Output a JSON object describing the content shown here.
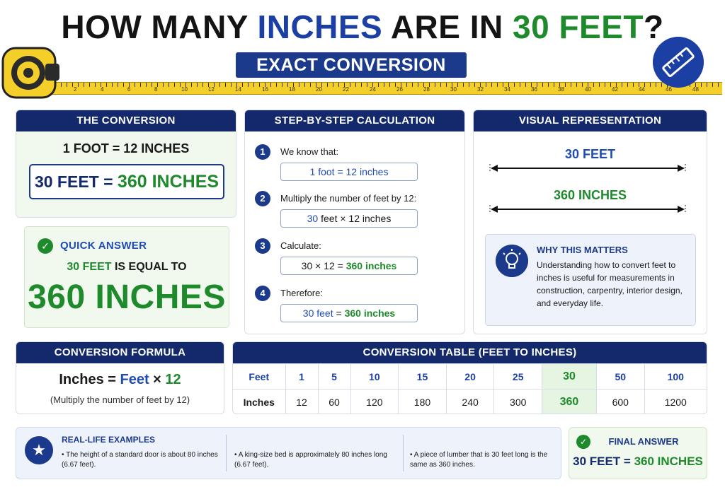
{
  "header": {
    "title_part1": "HOW MANY ",
    "title_part2": "INCHES",
    "title_part3": " ARE IN ",
    "title_part4": "30 FEET",
    "title_part5": "?",
    "subtitle": "EXACT CONVERSION"
  },
  "tape": {
    "numbers": [
      "2",
      "4",
      "6",
      "8",
      "10",
      "12",
      "14",
      "16",
      "18",
      "20",
      "22",
      "24",
      "26",
      "28",
      "30",
      "32",
      "34",
      "36",
      "38",
      "40",
      "42",
      "44",
      "46",
      "48"
    ]
  },
  "conversion": {
    "heading": "THE CONVERSION",
    "line1": "1 FOOT = 12 INCHES",
    "result_left": "30 FEET = ",
    "result_right": "360 INCHES"
  },
  "quick_answer": {
    "title": "QUICK ANSWER",
    "line_green": "30 FEET",
    "line_rest": " IS EQUAL TO",
    "big": "360 INCHES"
  },
  "steps": {
    "heading": "STEP-BY-STEP CALCULATION",
    "items": [
      {
        "num": "1",
        "label": "We know that:",
        "box_a": "1 foot = 12 inches",
        "box_b": "",
        "box_c": ""
      },
      {
        "num": "2",
        "label": "Multiply the number of feet by 12:",
        "box_a": "30",
        "box_b": " feet × 12 inches",
        "box_c": ""
      },
      {
        "num": "3",
        "label": "Calculate:",
        "box_a": "",
        "box_b": "30 × 12 = ",
        "box_c": "360 inches"
      },
      {
        "num": "4",
        "label": "Therefore:",
        "box_a": "30 feet",
        "box_b": " = ",
        "box_c": "360 inches"
      }
    ]
  },
  "visual": {
    "heading": "VISUAL REPRESENTATION",
    "label_feet": "30 FEET",
    "label_inches": "360 INCHES",
    "why_title": "WHY THIS MATTERS",
    "why_text": "Understanding how to convert feet to inches is useful for measurements in construction, carpentry, interior design, and everyday life."
  },
  "formula": {
    "heading": "CONVERSION FORMULA",
    "part1": "Inches = ",
    "part2": "Feet",
    "part3": " × ",
    "part4": "12",
    "note": "(Multiply the number of feet by 12)"
  },
  "table": {
    "heading": "CONVERSION TABLE (FEET TO INCHES)",
    "row1_label": "Feet",
    "row2_label": "Inches",
    "feet": [
      "1",
      "5",
      "10",
      "15",
      "20",
      "25",
      "30",
      "50",
      "100"
    ],
    "inches": [
      "12",
      "60",
      "120",
      "180",
      "240",
      "300",
      "360",
      "600",
      "1200"
    ]
  },
  "examples": {
    "title": "REAL-LIFE EXAMPLES",
    "items": [
      "• The height of a standard door is about 80 inches (6.67 feet).",
      "• A king-size bed is approximately 80 inches long (6.67 feet).",
      "• A piece of lumber that is 30 feet long is the same as 360 inches."
    ]
  },
  "final": {
    "title": "FINAL ANSWER",
    "left": "30 FEET = ",
    "right": "360 INCHES"
  },
  "colors": {
    "navy": "#14296b",
    "blue": "#1f4bb3",
    "green": "#1f8a2c",
    "tape_yellow": "#f4cf2a"
  },
  "icons": [
    "tape-measure-icon",
    "ruler-icon",
    "check-icon",
    "lightbulb-icon",
    "star-icon"
  ]
}
